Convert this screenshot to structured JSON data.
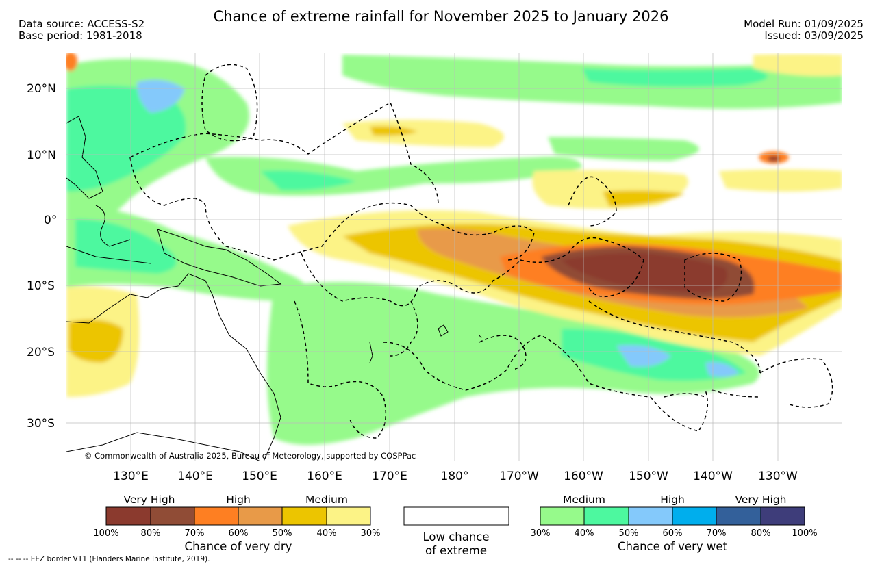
{
  "title": "Chance of extreme rainfall for November 2025 to January 2026",
  "header": {
    "data_source": "Data source: ACCESS-S2",
    "base_period": "Base period: 1981-2018",
    "model_run": "Model Run: 01/09/2025",
    "issued": "Issued: 03/09/2025"
  },
  "map": {
    "lat_labels": [
      "20°N",
      "10°N",
      "0°",
      "10°S",
      "20°S",
      "30°S"
    ],
    "lon_labels": [
      "130°E",
      "140°E",
      "150°E",
      "160°E",
      "170°E",
      "180°",
      "170°W",
      "160°W",
      "150°W",
      "140°W",
      "130°W"
    ],
    "copyright": "© Commonwealth of Australia 2025, Bureau of Meteorology, supported by COSPPac"
  },
  "dry_legend": {
    "headings": [
      "Very High",
      "High",
      "Medium"
    ],
    "colors": [
      "#8b3a2e",
      "#904c36",
      "#fe7f22",
      "#e89a48",
      "#ecc500",
      "#fcf386"
    ],
    "ticks": [
      "100%",
      "80%",
      "70%",
      "60%",
      "50%",
      "40%",
      "30%"
    ],
    "caption": "Chance of very dry"
  },
  "low_legend": {
    "caption_line1": "Low chance",
    "caption_line2": "of extreme"
  },
  "wet_legend": {
    "headings": [
      "Medium",
      "High",
      "Very High"
    ],
    "colors": [
      "#96fa8b",
      "#4df89f",
      "#84c9fb",
      "#00aeed",
      "#33609a",
      "#3e3d7a"
    ],
    "ticks": [
      "30%",
      "40%",
      "50%",
      "60%",
      "70%",
      "80%",
      "100%"
    ],
    "caption": "Chance of very wet"
  },
  "footer": {
    "eez_note": "--  --  -- EEZ border V11 (Flanders Marine Institute, 2019)."
  }
}
